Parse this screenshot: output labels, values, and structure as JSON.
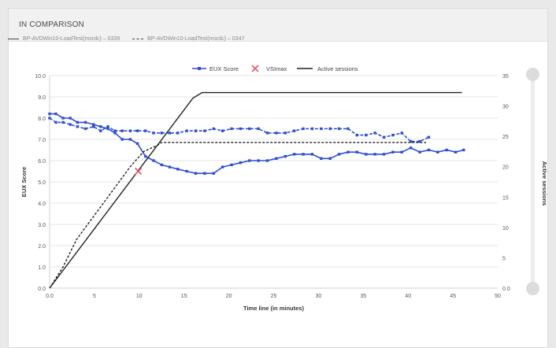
{
  "panel": {
    "title": "IN COMPARISON"
  },
  "comparison": [
    {
      "label": "BP-AVDWin10-LoadTest(msrdc) – 0339",
      "style": "solid"
    },
    {
      "label": "BP-AVDWin10-LoadTest(msrdc) – 0347",
      "style": "dashed"
    }
  ],
  "colors": {
    "eux": "#2e4fd6",
    "vsimax": "#e8576a",
    "sessions": "#222222",
    "grid": "#e6e6e6",
    "axis": "#cfcfcf"
  },
  "chart_data": {
    "type": "line",
    "xlabel": "Time line (in minutes)",
    "ylabel": "EUX Score",
    "y2label": "Active sessions",
    "xlim": [
      0,
      50
    ],
    "ylim": [
      0,
      10
    ],
    "y2lim": [
      0,
      35
    ],
    "xticks": [
      "0.0",
      "5",
      "10",
      "15",
      "20",
      "25",
      "30",
      "35",
      "40",
      "45",
      "50"
    ],
    "yticks": [
      "0.0",
      "1.0",
      "2.0",
      "3.0",
      "4.0",
      "5.0",
      "6.0",
      "7.0",
      "8.0",
      "9.0",
      "10.0"
    ],
    "y2ticks": [
      "0.0",
      "5",
      "10",
      "15",
      "20",
      "25",
      "30",
      "35"
    ],
    "legend": [
      "EUX Score",
      "VSImax",
      "Active sessions"
    ],
    "legend_position": "top",
    "series": [
      {
        "name": "EUX Score",
        "run": "0339",
        "style": "solid-markers",
        "x": [
          0,
          0.7,
          1.5,
          2.3,
          3.1,
          4,
          4.9,
          5.7,
          6.5,
          7.3,
          8.1,
          9,
          9.8,
          10.7,
          11.6,
          12.5,
          13.4,
          14.3,
          15.3,
          16.3,
          17.3,
          18.3,
          19.3,
          20.3,
          21.3,
          22.3,
          23.3,
          24.3,
          25.3,
          26.3,
          27.3,
          28.3,
          29.3,
          30.3,
          31.3,
          32.3,
          33.3,
          34.3,
          35.3,
          36.3,
          37.3,
          38.3,
          39.3,
          40.3,
          41.3,
          42.3,
          43.3,
          44.3,
          45.3,
          46.2
        ],
        "y": [
          8.2,
          8.2,
          8.0,
          8.0,
          7.8,
          7.8,
          7.7,
          7.6,
          7.5,
          7.3,
          7.0,
          7.0,
          6.8,
          6.2,
          6.0,
          5.8,
          5.7,
          5.6,
          5.5,
          5.4,
          5.4,
          5.4,
          5.7,
          5.8,
          5.9,
          6.0,
          6.0,
          6.0,
          6.1,
          6.2,
          6.3,
          6.3,
          6.3,
          6.1,
          6.1,
          6.3,
          6.4,
          6.4,
          6.3,
          6.3,
          6.3,
          6.4,
          6.4,
          6.6,
          6.4,
          6.5,
          6.4,
          6.5,
          6.4,
          6.5
        ]
      },
      {
        "name": "EUX Score",
        "run": "0347",
        "style": "dashed-markers",
        "x": [
          0,
          0.7,
          1.5,
          2.3,
          3.1,
          4,
          4.9,
          5.7,
          6.5,
          7.3,
          8.1,
          9,
          9.8,
          10.7,
          11.6,
          12.5,
          13.4,
          14.3,
          15.3,
          16.3,
          17.3,
          18.3,
          19.3,
          20.3,
          21.3,
          22.3,
          23.3,
          24.3,
          25.3,
          26.3,
          27.3,
          28.3,
          29.3,
          30.3,
          31.3,
          32.3,
          33.3,
          34.3,
          35.3,
          36.3,
          37.3,
          38.3,
          39.3,
          40.3,
          41.3,
          42.3
        ],
        "y": [
          8.0,
          7.8,
          7.8,
          7.7,
          7.6,
          7.5,
          7.6,
          7.4,
          7.6,
          7.4,
          7.4,
          7.4,
          7.4,
          7.4,
          7.3,
          7.3,
          7.3,
          7.3,
          7.4,
          7.4,
          7.4,
          7.5,
          7.4,
          7.5,
          7.5,
          7.5,
          7.5,
          7.3,
          7.3,
          7.3,
          7.4,
          7.5,
          7.5,
          7.5,
          7.5,
          7.5,
          7.5,
          7.2,
          7.2,
          7.3,
          7.1,
          7.2,
          7.3,
          6.9,
          6.9,
          7.1
        ]
      },
      {
        "name": "Active sessions",
        "run": "0339",
        "style": "solid",
        "axis": "right",
        "x": [
          0,
          16,
          17,
          46
        ],
        "y": [
          0,
          31.3,
          32.2,
          32.2
        ]
      },
      {
        "name": "Active sessions",
        "run": "0347",
        "style": "dashed",
        "axis": "right",
        "x": [
          0,
          1.5,
          3,
          4.5,
          6,
          7.5,
          9,
          10.5,
          12,
          12.5,
          42
        ],
        "y": [
          0,
          3.5,
          8,
          11,
          14,
          17,
          20,
          22.5,
          23.5,
          24,
          24
        ]
      }
    ],
    "vsimax": {
      "x": 9.9,
      "y": 5.5
    }
  }
}
